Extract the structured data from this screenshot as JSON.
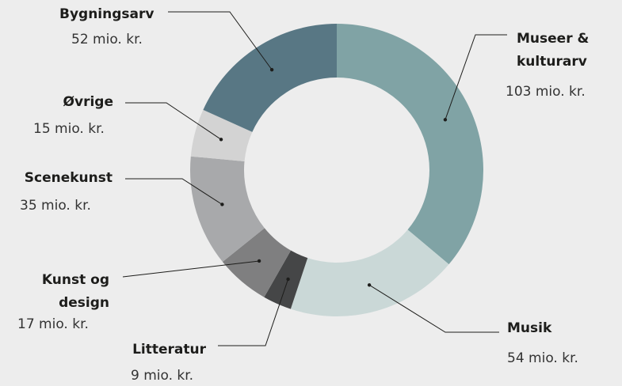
{
  "chart_data": {
    "type": "donut",
    "categories": [
      "Museer & kulturarv",
      "Musik",
      "Litteratur",
      "Kunst og design",
      "Scenekunst",
      "Øvrige",
      "Bygningsarv"
    ],
    "values": [
      103,
      54,
      9,
      17,
      35,
      15,
      52
    ],
    "value_labels": [
      "103 mio. kr.",
      "54 mio. kr.",
      "9 mio. kr.",
      "17 mio. kr.",
      "35 mio. kr.",
      "15 mio. kr.",
      "52 mio. kr."
    ],
    "colors": [
      "#80a3a5",
      "#cad8d7",
      "#454647",
      "#7f7f80",
      "#a8a9ab",
      "#d3d3d3",
      "#587784"
    ]
  }
}
